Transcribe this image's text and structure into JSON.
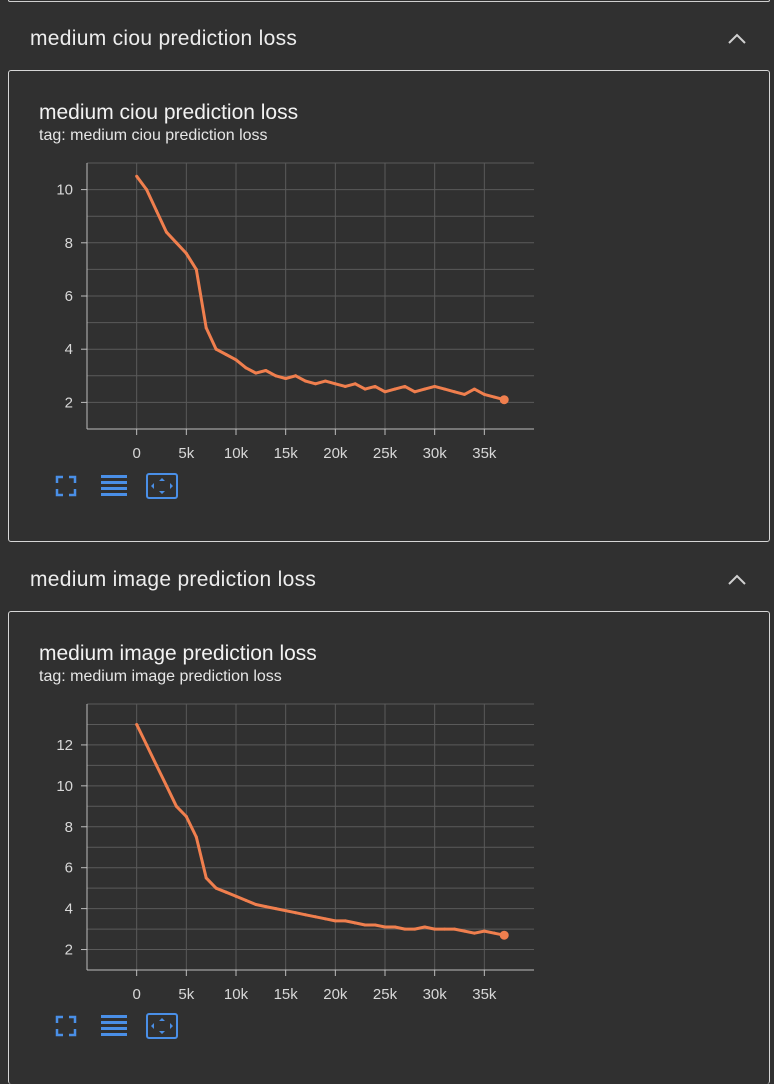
{
  "panels": [
    {
      "section_title": "medium ciou prediction loss",
      "card_title": "medium ciou prediction loss",
      "tag": "tag: medium ciou prediction loss",
      "icons": [
        "expand-icon",
        "list-icon",
        "fit-domain-icon"
      ]
    },
    {
      "section_title": "medium image prediction loss",
      "card_title": "medium image prediction loss",
      "tag": "tag: medium image prediction loss",
      "icons": [
        "expand-icon",
        "list-icon",
        "fit-domain-icon"
      ]
    }
  ],
  "colors": {
    "background": "#303030",
    "line": "#f07f4e",
    "raw_line": "#6a4a3e",
    "accent_icon": "#4a8fe7",
    "grid": "#5a5a5a"
  },
  "chart_data": [
    {
      "type": "line",
      "title": "medium ciou prediction loss",
      "xlim": [
        -5000,
        40000
      ],
      "ylim": [
        1.0,
        11.0
      ],
      "x_ticks": [
        0,
        5000,
        10000,
        15000,
        20000,
        25000,
        30000,
        35000
      ],
      "x_tick_labels": [
        "0",
        "5k",
        "10k",
        "15k",
        "20k",
        "25k",
        "30k",
        "35k"
      ],
      "y_ticks": [
        2,
        4,
        6,
        8,
        10
      ],
      "y_tick_labels": [
        "2",
        "4",
        "6",
        "8",
        "10"
      ],
      "grid": true,
      "series": [
        {
          "x": [
            0,
            1000,
            2000,
            3000,
            4000,
            5000,
            6000,
            7000,
            8000,
            9000,
            10000,
            11000,
            12000,
            13000,
            14000,
            15000,
            16000,
            17000,
            18000,
            19000,
            20000,
            21000,
            22000,
            23000,
            24000,
            25000,
            26000,
            27000,
            28000,
            29000,
            30000,
            31000,
            32000,
            33000,
            34000,
            35000,
            36000,
            37000
          ],
          "values": [
            10.5,
            10.0,
            9.2,
            8.4,
            8.0,
            7.6,
            7.0,
            4.8,
            4.0,
            3.8,
            3.6,
            3.3,
            3.1,
            3.2,
            3.0,
            2.9,
            3.0,
            2.8,
            2.7,
            2.8,
            2.7,
            2.6,
            2.7,
            2.5,
            2.6,
            2.4,
            2.5,
            2.6,
            2.4,
            2.5,
            2.6,
            2.5,
            2.4,
            2.3,
            2.5,
            2.3,
            2.2,
            2.1
          ]
        }
      ]
    },
    {
      "type": "line",
      "title": "medium image prediction loss",
      "xlim": [
        -5000,
        40000
      ],
      "ylim": [
        1.0,
        14.0
      ],
      "x_ticks": [
        0,
        5000,
        10000,
        15000,
        20000,
        25000,
        30000,
        35000
      ],
      "x_tick_labels": [
        "0",
        "5k",
        "10k",
        "15k",
        "20k",
        "25k",
        "30k",
        "35k"
      ],
      "y_ticks": [
        2,
        4,
        6,
        8,
        10,
        12
      ],
      "y_tick_labels": [
        "2",
        "4",
        "6",
        "8",
        "10",
        "12"
      ],
      "grid": true,
      "series": [
        {
          "x": [
            0,
            1000,
            2000,
            3000,
            4000,
            5000,
            6000,
            7000,
            8000,
            9000,
            10000,
            11000,
            12000,
            13000,
            14000,
            15000,
            16000,
            17000,
            18000,
            19000,
            20000,
            21000,
            22000,
            23000,
            24000,
            25000,
            26000,
            27000,
            28000,
            29000,
            30000,
            31000,
            32000,
            33000,
            34000,
            35000,
            36000,
            37000
          ],
          "values": [
            13.0,
            12.0,
            11.0,
            10.0,
            9.0,
            8.5,
            7.5,
            5.5,
            5.0,
            4.8,
            4.6,
            4.4,
            4.2,
            4.1,
            4.0,
            3.9,
            3.8,
            3.7,
            3.6,
            3.5,
            3.4,
            3.4,
            3.3,
            3.2,
            3.2,
            3.1,
            3.1,
            3.0,
            3.0,
            3.1,
            3.0,
            3.0,
            3.0,
            2.9,
            2.8,
            2.9,
            2.8,
            2.7
          ]
        }
      ]
    }
  ]
}
